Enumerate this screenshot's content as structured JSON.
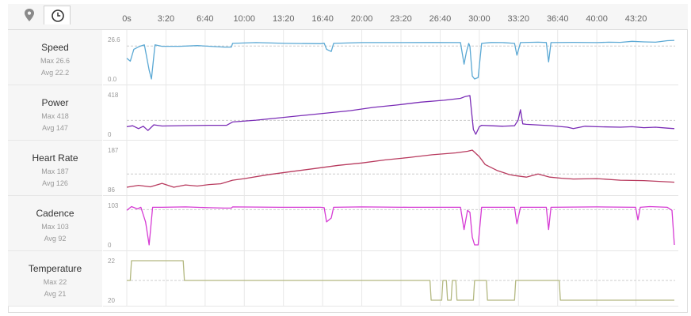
{
  "toolbar": {
    "buttons": [
      {
        "name": "map-pin-icon",
        "active": false
      },
      {
        "name": "clock-icon",
        "active": true
      }
    ]
  },
  "colors": {
    "speed": "#5aa8d4",
    "power": "#7a2cb6",
    "heart_rate": "#b83a5e",
    "cadence": "#d63ad4",
    "temperature": "#b3b880",
    "panel_bg": "#f6f6f6",
    "grid": "#e8e8e8",
    "avg_line": "#cccccc"
  },
  "chart_data": {
    "type": "line",
    "x_unit": "min:sec",
    "x_range": [
      "0:00",
      "46:40"
    ],
    "x_ticks": [
      "0s",
      "3:20",
      "6:40",
      "10:00",
      "13:20",
      "16:40",
      "20:00",
      "23:20",
      "26:40",
      "30:00",
      "33:20",
      "36:40",
      "40:00",
      "43:20"
    ],
    "panels": [
      {
        "key": "speed",
        "label": "Speed",
        "max_text": "Max 26.6",
        "avg_text": "Avg 22.2",
        "y_labels": [
          "26.6",
          "0.0"
        ],
        "ylim": [
          0,
          26.6
        ],
        "avg": 22.2,
        "series": {
          "name": "Speed",
          "points": [
            [
              0,
              14
            ],
            [
              0.3,
              12
            ],
            [
              0.6,
              20
            ],
            [
              1.1,
              22
            ],
            [
              1.5,
              23
            ],
            [
              1.9,
              6
            ],
            [
              2.1,
              0
            ],
            [
              2.4,
              23
            ],
            [
              3.0,
              22
            ],
            [
              4.5,
              22
            ],
            [
              6.0,
              22.5
            ],
            [
              8.3,
              21.5
            ],
            [
              8.9,
              21.5
            ],
            [
              9.0,
              24
            ],
            [
              11.0,
              24.5
            ],
            [
              13.5,
              24
            ],
            [
              16.5,
              23.8
            ],
            [
              16.8,
              24.1
            ],
            [
              17.0,
              20
            ],
            [
              17.4,
              18.5
            ],
            [
              17.6,
              24
            ],
            [
              20.0,
              24.5
            ],
            [
              23.0,
              24.5
            ],
            [
              26.0,
              24.6
            ],
            [
              28.4,
              24.5
            ],
            [
              28.7,
              10
            ],
            [
              28.9,
              18
            ],
            [
              29.1,
              24
            ],
            [
              29.2,
              22
            ],
            [
              29.4,
              2
            ],
            [
              29.6,
              0
            ],
            [
              29.9,
              1
            ],
            [
              30.2,
              24
            ],
            [
              31.0,
              24.6
            ],
            [
              32.0,
              24.5
            ],
            [
              33.0,
              24
            ],
            [
              33.2,
              16
            ],
            [
              33.5,
              24.5
            ],
            [
              35.0,
              24.8
            ],
            [
              35.7,
              24.6
            ],
            [
              35.9,
              11.5
            ],
            [
              36.1,
              24.5
            ],
            [
              38.0,
              24.7
            ],
            [
              40.0,
              24.5
            ],
            [
              41.0,
              24.8
            ],
            [
              42.0,
              24.7
            ],
            [
              43.0,
              25.4
            ],
            [
              44.0,
              25
            ],
            [
              45.0,
              24.8
            ],
            [
              46.0,
              25.8
            ],
            [
              46.6,
              26.0
            ]
          ]
        }
      },
      {
        "key": "power",
        "label": "Power",
        "max_text": "Max 418",
        "avg_text": "Avg 147",
        "y_labels": [
          "418",
          "0"
        ],
        "ylim": [
          0,
          418
        ],
        "avg": 147,
        "series": {
          "name": "Power",
          "points": [
            [
              0,
              80
            ],
            [
              0.5,
              90
            ],
            [
              1.0,
              60
            ],
            [
              1.4,
              85
            ],
            [
              1.8,
              40
            ],
            [
              2.3,
              100
            ],
            [
              3.0,
              88
            ],
            [
              5.0,
              92
            ],
            [
              7.0,
              95
            ],
            [
              8.5,
              95
            ],
            [
              9.0,
              130
            ],
            [
              11.0,
              150
            ],
            [
              13.0,
              175
            ],
            [
              15.0,
              200
            ],
            [
              17.0,
              225
            ],
            [
              19.0,
              250
            ],
            [
              21.0,
              285
            ],
            [
              23.0,
              310
            ],
            [
              25.0,
              340
            ],
            [
              27.0,
              360
            ],
            [
              28.4,
              380
            ],
            [
              28.8,
              400
            ],
            [
              29.2,
              410
            ],
            [
              29.5,
              50
            ],
            [
              29.7,
              0
            ],
            [
              30.0,
              80
            ],
            [
              30.2,
              95
            ],
            [
              31.0,
              90
            ],
            [
              32.0,
              85
            ],
            [
              33.0,
              90
            ],
            [
              33.3,
              150
            ],
            [
              33.5,
              260
            ],
            [
              33.7,
              110
            ],
            [
              34.0,
              105
            ],
            [
              35.5,
              95
            ],
            [
              36.0,
              92
            ],
            [
              37.5,
              75
            ],
            [
              38.0,
              60
            ],
            [
              39.0,
              85
            ],
            [
              40.0,
              80
            ],
            [
              42.0,
              75
            ],
            [
              43.0,
              80
            ],
            [
              44.0,
              70
            ],
            [
              45.0,
              75
            ],
            [
              46.0,
              65
            ],
            [
              46.6,
              60
            ]
          ]
        }
      },
      {
        "key": "heart_rate",
        "label": "Heart Rate",
        "max_text": "Max 187",
        "avg_text": "Avg 126",
        "y_labels": [
          "187",
          "86"
        ],
        "ylim": [
          86,
          187
        ],
        "avg": 126,
        "series": {
          "name": "Heart Rate",
          "points": [
            [
              0,
              92
            ],
            [
              1.0,
              97
            ],
            [
              2.0,
              93
            ],
            [
              3.0,
              102
            ],
            [
              4.0,
              92
            ],
            [
              5.0,
              98
            ],
            [
              6.0,
              95
            ],
            [
              7.0,
              99
            ],
            [
              8.0,
              101
            ],
            [
              9.0,
              110
            ],
            [
              10.0,
              114
            ],
            [
              12.0,
              124
            ],
            [
              14.0,
              132
            ],
            [
              16.0,
              140
            ],
            [
              18.0,
              148
            ],
            [
              20.0,
              154
            ],
            [
              22.0,
              162
            ],
            [
              24.0,
              168
            ],
            [
              26.0,
              175
            ],
            [
              28.0,
              180
            ],
            [
              29.0,
              184
            ],
            [
              29.4,
              187
            ],
            [
              30.0,
              170
            ],
            [
              30.5,
              150
            ],
            [
              31.5,
              135
            ],
            [
              32.5,
              125
            ],
            [
              33.0,
              122
            ],
            [
              34.0,
              118
            ],
            [
              35.0,
              126
            ],
            [
              36.0,
              118
            ],
            [
              37.0,
              115
            ],
            [
              38.0,
              113
            ],
            [
              40.0,
              114
            ],
            [
              42.0,
              110
            ],
            [
              44.0,
              109
            ],
            [
              46.6,
              105
            ]
          ]
        }
      },
      {
        "key": "cadence",
        "label": "Cadence",
        "max_text": "Max 103",
        "avg_text": "Avg 92",
        "y_labels": [
          "103",
          "0"
        ],
        "ylim": [
          0,
          103
        ],
        "avg": 92,
        "series": {
          "name": "Cadence",
          "points": [
            [
              0,
              90
            ],
            [
              0.4,
              100
            ],
            [
              0.9,
              94
            ],
            [
              1.2,
              98
            ],
            [
              1.6,
              60
            ],
            [
              1.9,
              0
            ],
            [
              2.2,
              98
            ],
            [
              3.0,
              98
            ],
            [
              5.0,
              99
            ],
            [
              7.0,
              97
            ],
            [
              8.3,
              96
            ],
            [
              8.9,
              96
            ],
            [
              9.0,
              99
            ],
            [
              13.0,
              98
            ],
            [
              16.5,
              98
            ],
            [
              16.8,
              97
            ],
            [
              17.0,
              60
            ],
            [
              17.4,
              70
            ],
            [
              17.6,
              98
            ],
            [
              20.0,
              99
            ],
            [
              24.0,
              98
            ],
            [
              28.4,
              98
            ],
            [
              28.7,
              40
            ],
            [
              29.0,
              90
            ],
            [
              29.2,
              85
            ],
            [
              29.4,
              20
            ],
            [
              29.6,
              0
            ],
            [
              29.9,
              0
            ],
            [
              30.2,
              98
            ],
            [
              33.0,
              98
            ],
            [
              33.2,
              55
            ],
            [
              33.5,
              98
            ],
            [
              35.7,
              98
            ],
            [
              35.9,
              40
            ],
            [
              36.1,
              98
            ],
            [
              40.0,
              99
            ],
            [
              43.3,
              98
            ],
            [
              43.5,
              65
            ],
            [
              43.7,
              98
            ],
            [
              44.5,
              100
            ],
            [
              46.0,
              98
            ],
            [
              46.4,
              90
            ],
            [
              46.6,
              0
            ]
          ]
        }
      },
      {
        "key": "temperature",
        "label": "Temperature",
        "max_text": "Max 22",
        "avg_text": "Avg 21",
        "y_labels": [
          "22",
          "20"
        ],
        "ylim": [
          20,
          22
        ],
        "avg": 21,
        "series": {
          "name": "Temperature",
          "points": [
            [
              0,
              21
            ],
            [
              0.3,
              21
            ],
            [
              0.4,
              22
            ],
            [
              4.8,
              22
            ],
            [
              4.9,
              21
            ],
            [
              25.8,
              21
            ],
            [
              25.9,
              20
            ],
            [
              26.8,
              20
            ],
            [
              26.9,
              21
            ],
            [
              27.2,
              21
            ],
            [
              27.3,
              20
            ],
            [
              27.6,
              20
            ],
            [
              27.7,
              21
            ],
            [
              28.0,
              21
            ],
            [
              28.1,
              20
            ],
            [
              29.5,
              20
            ],
            [
              29.6,
              21
            ],
            [
              30.6,
              21
            ],
            [
              30.7,
              20
            ],
            [
              33.0,
              20
            ],
            [
              33.1,
              21
            ],
            [
              36.8,
              21
            ],
            [
              36.9,
              20
            ],
            [
              46.6,
              20
            ]
          ]
        }
      }
    ]
  }
}
